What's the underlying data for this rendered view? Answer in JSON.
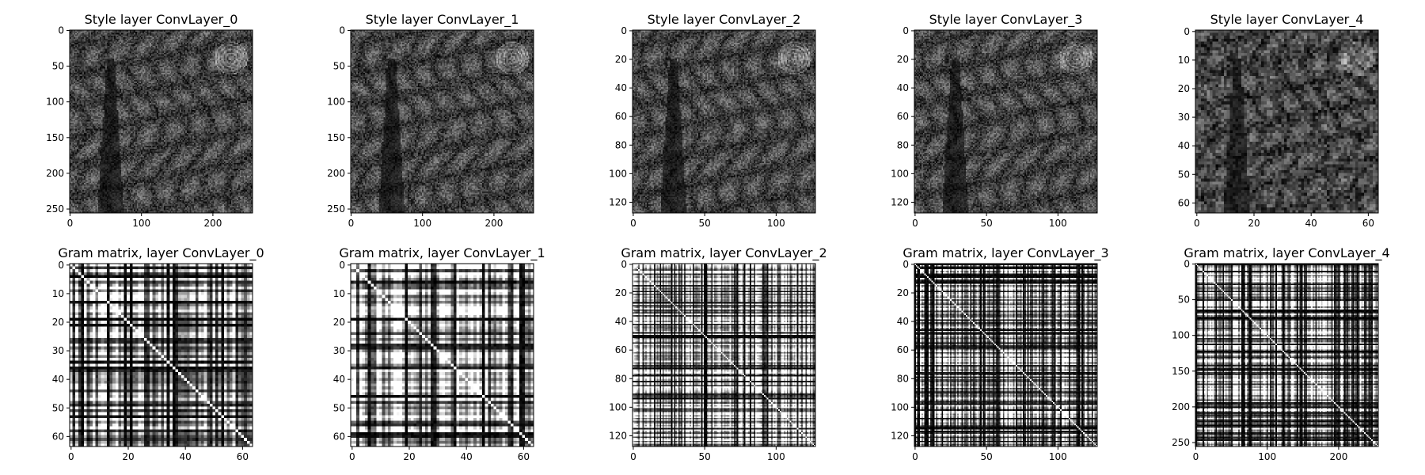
{
  "chart_data": [
    {
      "type": "heatmap",
      "title": "Style layer ConvLayer_0",
      "xlim": [
        0,
        255
      ],
      "ylim": [
        255,
        0
      ],
      "xticks": [
        0,
        100,
        200
      ],
      "yticks": [
        0,
        50,
        100,
        150,
        200,
        250
      ],
      "colormap": "gray",
      "content": "style feature map"
    },
    {
      "type": "heatmap",
      "title": "Style layer ConvLayer_1",
      "xlim": [
        0,
        255
      ],
      "ylim": [
        255,
        0
      ],
      "xticks": [
        0,
        100,
        200
      ],
      "yticks": [
        0,
        50,
        100,
        150,
        200,
        250
      ],
      "colormap": "gray",
      "content": "style feature map"
    },
    {
      "type": "heatmap",
      "title": "Style layer ConvLayer_2",
      "xlim": [
        0,
        127
      ],
      "ylim": [
        127,
        0
      ],
      "xticks": [
        0,
        50,
        100
      ],
      "yticks": [
        0,
        20,
        40,
        60,
        80,
        100,
        120
      ],
      "colormap": "gray",
      "content": "style feature map"
    },
    {
      "type": "heatmap",
      "title": "Style layer ConvLayer_3",
      "xlim": [
        0,
        127
      ],
      "ylim": [
        127,
        0
      ],
      "xticks": [
        0,
        50,
        100
      ],
      "yticks": [
        0,
        20,
        40,
        60,
        80,
        100,
        120
      ],
      "colormap": "gray",
      "content": "style feature map"
    },
    {
      "type": "heatmap",
      "title": "Style layer ConvLayer_4",
      "xlim": [
        0,
        63
      ],
      "ylim": [
        63,
        0
      ],
      "xticks": [
        0,
        20,
        40,
        60
      ],
      "yticks": [
        0,
        10,
        20,
        30,
        40,
        50,
        60
      ],
      "colormap": "gray",
      "content": "style feature map"
    },
    {
      "type": "heatmap",
      "title": "Gram matrix, layer ConvLayer_0",
      "xlim": [
        0,
        63
      ],
      "ylim": [
        63,
        0
      ],
      "xticks": [
        0,
        20,
        40,
        60
      ],
      "yticks": [
        0,
        10,
        20,
        30,
        40,
        50,
        60
      ],
      "colormap": "gray",
      "content": "gram matrix"
    },
    {
      "type": "heatmap",
      "title": "Gram matrix, layer ConvLayer_1",
      "xlim": [
        0,
        63
      ],
      "ylim": [
        63,
        0
      ],
      "xticks": [
        0,
        20,
        40,
        60
      ],
      "yticks": [
        0,
        10,
        20,
        30,
        40,
        50,
        60
      ],
      "colormap": "gray",
      "content": "gram matrix"
    },
    {
      "type": "heatmap",
      "title": "Gram matrix, layer ConvLayer_2",
      "xlim": [
        0,
        127
      ],
      "ylim": [
        127,
        0
      ],
      "xticks": [
        0,
        50,
        100
      ],
      "yticks": [
        0,
        20,
        40,
        60,
        80,
        100,
        120
      ],
      "colormap": "gray",
      "content": "gram matrix"
    },
    {
      "type": "heatmap",
      "title": "Gram matrix, layer ConvLayer_3",
      "xlim": [
        0,
        127
      ],
      "ylim": [
        127,
        0
      ],
      "xticks": [
        0,
        50,
        100
      ],
      "yticks": [
        0,
        20,
        40,
        60,
        80,
        100,
        120
      ],
      "colormap": "gray",
      "content": "gram matrix"
    },
    {
      "type": "heatmap",
      "title": "Gram matrix, layer ConvLayer_4",
      "xlim": [
        0,
        255
      ],
      "ylim": [
        255,
        0
      ],
      "xticks": [
        0,
        100,
        200
      ],
      "yticks": [
        0,
        50,
        100,
        150,
        200,
        250
      ],
      "colormap": "gray",
      "content": "gram matrix"
    }
  ]
}
